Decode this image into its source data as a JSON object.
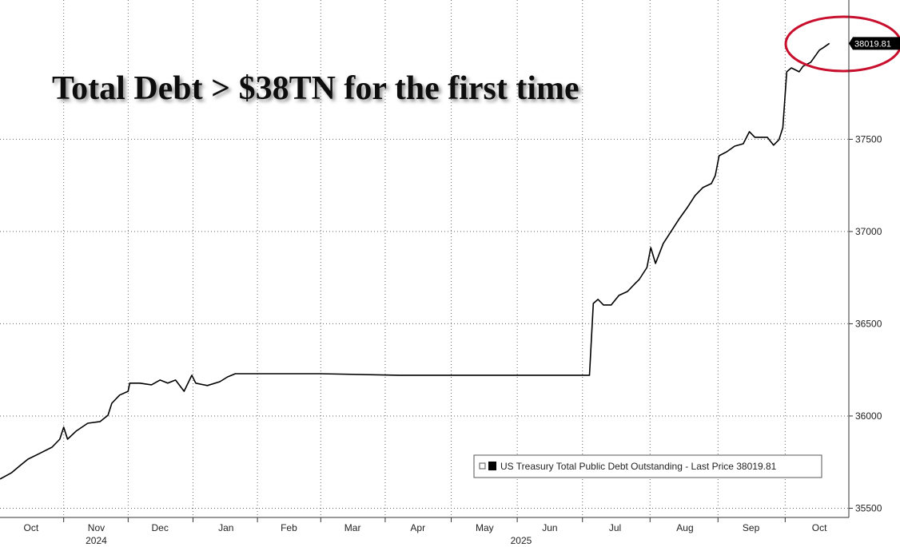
{
  "chart_data": {
    "type": "line",
    "title": "Total Debt > $38TN for the first time",
    "x": [
      2024.75,
      2024.765,
      2024.776,
      2024.786,
      2024.801,
      2024.817,
      2024.827,
      2024.832,
      2024.837,
      2024.848,
      2024.863,
      2024.879,
      2024.889,
      2024.894,
      2024.904,
      2024.915,
      2024.917,
      2024.93,
      2024.945,
      2024.956,
      2024.966,
      2024.976,
      2024.987,
      2024.997,
      2025.002,
      2025.017,
      2025.033,
      2025.043,
      2025.053,
      2025.079,
      2025.162,
      2025.264,
      2025.367,
      2025.47,
      2025.509,
      2025.514,
      2025.52,
      2025.527,
      2025.537,
      2025.547,
      2025.558,
      2025.568,
      2025.573,
      2025.583,
      2025.588,
      2025.594,
      2025.604,
      2025.614,
      2025.624,
      2025.635,
      2025.645,
      2025.655,
      2025.666,
      2025.671,
      2025.676,
      2025.686,
      2025.696,
      2025.707,
      2025.715,
      2025.722,
      2025.738,
      2025.746,
      2025.753,
      2025.758,
      2025.763,
      2025.769,
      2025.779,
      2025.784,
      2025.794,
      2025.805,
      2025.81,
      2025.818
    ],
    "series": [
      {
        "name": "US Treasury Total Public Debt Outstanding - Last Price 38019.81",
        "color": "#000000",
        "values": [
          35658,
          35693,
          35732,
          35766,
          35797,
          35831,
          35874,
          35939,
          35874,
          35918,
          35961,
          35970,
          36004,
          36069,
          36113,
          36134,
          36178,
          36178,
          36169,
          36195,
          36178,
          36195,
          36134,
          36221,
          36178,
          36165,
          36186,
          36212,
          36229,
          36229,
          36229,
          36221,
          36221,
          36221,
          36221,
          36610,
          36632,
          36602,
          36602,
          36654,
          36675,
          36719,
          36740,
          36805,
          36913,
          36827,
          36935,
          37000,
          37065,
          37130,
          37195,
          37238,
          37260,
          37303,
          37411,
          37433,
          37463,
          37476,
          37541,
          37511,
          37511,
          37468,
          37498,
          37563,
          37866,
          37887,
          37866,
          37896,
          37918,
          37983,
          37996,
          38019.81
        ]
      }
    ],
    "xlim": [
      2024.75,
      2025.843
    ],
    "xticks": [
      {
        "value": 2024.79,
        "label": "Oct"
      },
      {
        "value": 2024.874,
        "label": "Nov"
      },
      {
        "value": 2024.956,
        "label": "Dec"
      },
      {
        "value": 2025.041,
        "label": "Jan"
      },
      {
        "value": 2025.122,
        "label": "Feb"
      },
      {
        "value": 2025.204,
        "label": "Mar"
      },
      {
        "value": 2025.288,
        "label": "Apr"
      },
      {
        "value": 2025.374,
        "label": "May"
      },
      {
        "value": 2025.458,
        "label": "Jun"
      },
      {
        "value": 2025.542,
        "label": "Jul"
      },
      {
        "value": 2025.632,
        "label": "Aug"
      },
      {
        "value": 2025.717,
        "label": "Sep"
      },
      {
        "value": 2025.805,
        "label": "Oct"
      }
    ],
    "year_labels": [
      {
        "value": 2024.874,
        "label": "2024"
      },
      {
        "value": 2025.421,
        "label": "2025"
      }
    ],
    "ylim": [
      35450,
      38255
    ],
    "yticks": [
      35500,
      36000,
      36500,
      37000,
      37500
    ],
    "grid": true
  }
}
